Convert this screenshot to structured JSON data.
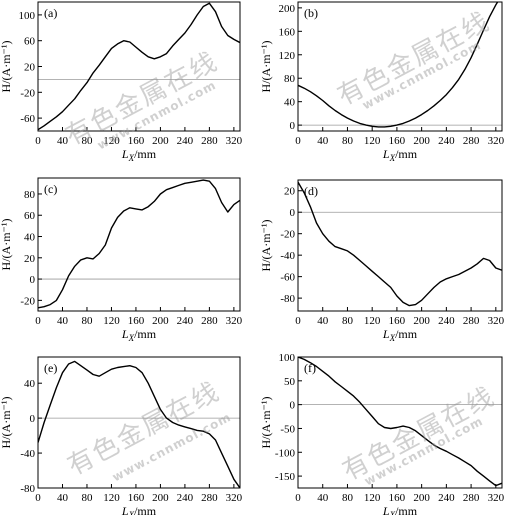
{
  "chart_data": [
    {
      "type": "line",
      "tag": "(a)",
      "xlabel_main": "L",
      "xlabel_sub": "X",
      "xlabel_unit": "/mm",
      "ylabel": "H/(A·m⁻¹)",
      "xlim": [
        0,
        330
      ],
      "ylim": [
        -80,
        120
      ],
      "xticks": [
        0,
        40,
        80,
        120,
        160,
        200,
        240,
        280,
        320
      ],
      "yticks": [
        -60,
        -20,
        20,
        60,
        100
      ],
      "zero_line": true,
      "series": [
        {
          "x": [
            0,
            10,
            20,
            30,
            40,
            50,
            60,
            70,
            80,
            90,
            100,
            110,
            120,
            130,
            140,
            150,
            160,
            170,
            180,
            190,
            200,
            210,
            220,
            230,
            240,
            250,
            260,
            270,
            280,
            290,
            300,
            310,
            320,
            330
          ],
          "y": [
            -78,
            -72,
            -65,
            -58,
            -50,
            -40,
            -30,
            -17,
            -5,
            10,
            22,
            35,
            48,
            55,
            60,
            58,
            50,
            42,
            35,
            32,
            35,
            40,
            52,
            62,
            72,
            85,
            100,
            113,
            118,
            105,
            82,
            68,
            62,
            57
          ]
        }
      ]
    },
    {
      "type": "line",
      "tag": "(b)",
      "xlabel_main": "L",
      "xlabel_sub": "X",
      "xlabel_unit": "/mm",
      "ylabel": "H/(A·m⁻¹)",
      "xlim": [
        0,
        330
      ],
      "ylim": [
        -10,
        210
      ],
      "xticks": [
        0,
        40,
        80,
        120,
        160,
        200,
        240,
        280,
        320
      ],
      "yticks": [
        0,
        40,
        80,
        120,
        160,
        200
      ],
      "zero_line": true,
      "series": [
        {
          "x": [
            0,
            10,
            20,
            30,
            40,
            50,
            60,
            70,
            80,
            90,
            100,
            110,
            120,
            130,
            140,
            150,
            160,
            170,
            180,
            190,
            200,
            210,
            220,
            230,
            240,
            250,
            260,
            270,
            280,
            290,
            300,
            310,
            320,
            330
          ],
          "y": [
            68,
            63,
            57,
            50,
            42,
            33,
            25,
            18,
            12,
            7,
            3,
            0,
            -2,
            -3,
            -3,
            -2,
            0,
            3,
            7,
            12,
            18,
            25,
            33,
            42,
            52,
            64,
            78,
            95,
            115,
            138,
            162,
            185,
            205,
            222
          ]
        }
      ]
    },
    {
      "type": "line",
      "tag": "(c)",
      "xlabel_main": "L",
      "xlabel_sub": "X",
      "xlabel_unit": "/mm",
      "ylabel": "H/(A·m⁻¹)",
      "xlim": [
        0,
        330
      ],
      "ylim": [
        -30,
        95
      ],
      "xticks": [
        0,
        40,
        80,
        120,
        160,
        200,
        240,
        280,
        320
      ],
      "yticks": [
        -20,
        0,
        20,
        40,
        60,
        80
      ],
      "zero_line": true,
      "series": [
        {
          "x": [
            0,
            10,
            20,
            30,
            40,
            50,
            60,
            70,
            80,
            90,
            100,
            110,
            120,
            130,
            140,
            150,
            160,
            170,
            180,
            190,
            200,
            210,
            220,
            230,
            240,
            250,
            260,
            270,
            280,
            290,
            300,
            310,
            320,
            330
          ],
          "y": [
            -27,
            -26,
            -24,
            -20,
            -10,
            3,
            12,
            18,
            20,
            19,
            24,
            32,
            48,
            58,
            64,
            67,
            66,
            65,
            68,
            73,
            80,
            84,
            86,
            88,
            90,
            91,
            92,
            93,
            92,
            85,
            72,
            63,
            70,
            74
          ]
        }
      ]
    },
    {
      "type": "line",
      "tag": "(d)",
      "xlabel_main": "L",
      "xlabel_sub": "X",
      "xlabel_unit": "/mm",
      "ylabel": "H/(A·m⁻¹)",
      "xlim": [
        0,
        330
      ],
      "ylim": [
        -92,
        30
      ],
      "xticks": [
        0,
        40,
        80,
        120,
        160,
        200,
        240,
        280,
        320
      ],
      "yticks": [
        -80,
        -60,
        -40,
        -20,
        0,
        20
      ],
      "zero_line": true,
      "series": [
        {
          "x": [
            0,
            10,
            20,
            30,
            40,
            50,
            60,
            70,
            80,
            90,
            100,
            110,
            120,
            130,
            140,
            150,
            160,
            170,
            180,
            190,
            200,
            210,
            220,
            230,
            240,
            250,
            260,
            270,
            280,
            290,
            300,
            310,
            320,
            330
          ],
          "y": [
            28,
            18,
            5,
            -10,
            -20,
            -27,
            -32,
            -34,
            -36,
            -40,
            -45,
            -50,
            -55,
            -60,
            -65,
            -70,
            -78,
            -84,
            -87,
            -86,
            -82,
            -76,
            -70,
            -65,
            -62,
            -60,
            -58,
            -55,
            -52,
            -48,
            -43,
            -45,
            -52,
            -54
          ]
        }
      ]
    },
    {
      "type": "line",
      "tag": "(e)",
      "xlabel_main": "L",
      "xlabel_sub": "X",
      "xlabel_unit": "/mm",
      "ylabel": "H/(A·m⁻¹)",
      "xlim": [
        0,
        330
      ],
      "ylim": [
        -80,
        70
      ],
      "xticks": [
        0,
        40,
        80,
        120,
        160,
        200,
        240,
        280,
        320
      ],
      "yticks": [
        -80,
        -40,
        0,
        40
      ],
      "zero_line": true,
      "series": [
        {
          "x": [
            0,
            10,
            20,
            30,
            40,
            50,
            60,
            70,
            80,
            90,
            100,
            110,
            120,
            130,
            140,
            150,
            160,
            170,
            180,
            190,
            200,
            210,
            220,
            230,
            240,
            250,
            260,
            270,
            280,
            290,
            300,
            310,
            320,
            330
          ],
          "y": [
            -28,
            -5,
            15,
            35,
            52,
            62,
            65,
            60,
            55,
            50,
            48,
            52,
            56,
            58,
            59,
            60,
            58,
            52,
            40,
            25,
            10,
            0,
            -5,
            -8,
            -10,
            -12,
            -14,
            -15,
            -18,
            -25,
            -40,
            -55,
            -70,
            -80
          ]
        }
      ]
    },
    {
      "type": "line",
      "tag": "(f)",
      "xlabel_main": "L",
      "xlabel_sub": "X",
      "xlabel_unit": "/mm",
      "ylabel": "H/(A·m⁻¹)",
      "xlim": [
        0,
        330
      ],
      "ylim": [
        -175,
        100
      ],
      "xticks": [
        0,
        40,
        80,
        120,
        160,
        200,
        240,
        280,
        320
      ],
      "yticks": [
        -150,
        -100,
        -50,
        0,
        50,
        100
      ],
      "zero_line": true,
      "series": [
        {
          "x": [
            0,
            10,
            20,
            30,
            40,
            50,
            60,
            70,
            80,
            90,
            100,
            110,
            120,
            130,
            140,
            150,
            160,
            170,
            180,
            190,
            200,
            210,
            220,
            230,
            240,
            250,
            260,
            270,
            280,
            290,
            300,
            310,
            320,
            330
          ],
          "y": [
            100,
            95,
            88,
            80,
            70,
            60,
            48,
            38,
            28,
            18,
            5,
            -10,
            -25,
            -40,
            -48,
            -50,
            -48,
            -45,
            -48,
            -55,
            -65,
            -75,
            -85,
            -92,
            -98,
            -105,
            -112,
            -120,
            -128,
            -140,
            -150,
            -160,
            -170,
            -165
          ]
        }
      ]
    }
  ],
  "watermark": {
    "cn": "有色金属在线",
    "url": "www.cnnmol.com"
  }
}
